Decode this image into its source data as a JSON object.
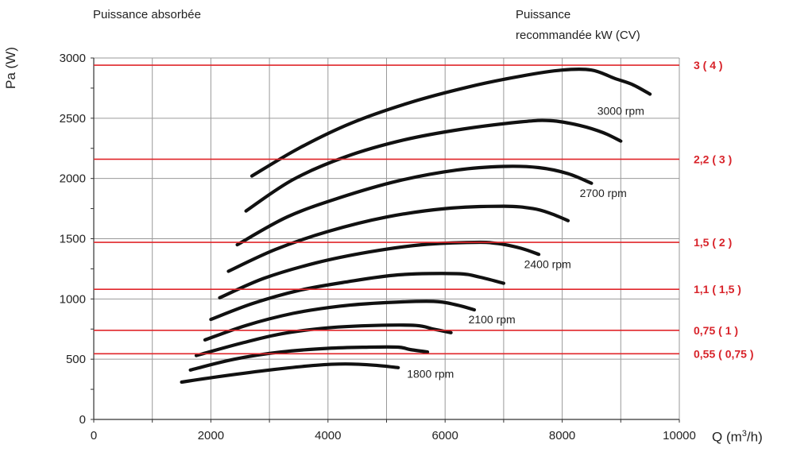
{
  "header": {
    "left_title": "Puissance absorbée",
    "right_title_line1": "Puissance",
    "right_title_line2": "recommandée kW (CV)"
  },
  "axes": {
    "ylabel": "Pa (W)",
    "xlabel_prefix": "Q (m",
    "xlabel_sup": "3",
    "xlabel_suffix": "/h)"
  },
  "chart_data": {
    "type": "line",
    "xlim": [
      0,
      10000
    ],
    "ylim": [
      0,
      3000
    ],
    "x_ticks": [
      0,
      2000,
      4000,
      6000,
      8000,
      10000
    ],
    "y_ticks": [
      0,
      500,
      1000,
      1500,
      2000,
      2500,
      3000
    ],
    "grid": true,
    "series": [
      {
        "points": [
          [
            1500,
            310
          ],
          [
            2200,
            360
          ],
          [
            3000,
            410
          ],
          [
            3800,
            450
          ],
          [
            4300,
            460
          ],
          [
            4800,
            450
          ],
          [
            5200,
            430
          ]
        ]
      },
      {
        "points": [
          [
            1650,
            410
          ],
          [
            2400,
            500
          ],
          [
            3200,
            560
          ],
          [
            4000,
            590
          ],
          [
            4700,
            600
          ],
          [
            5200,
            600
          ],
          [
            5400,
            580
          ],
          [
            5700,
            560
          ]
        ]
      },
      {
        "points": [
          [
            1750,
            530
          ],
          [
            2500,
            630
          ],
          [
            3200,
            710
          ],
          [
            4000,
            760
          ],
          [
            4800,
            780
          ],
          [
            5500,
            780
          ],
          [
            5800,
            750
          ],
          [
            6100,
            720
          ]
        ]
      },
      {
        "points": [
          [
            1900,
            660
          ],
          [
            2600,
            780
          ],
          [
            3400,
            880
          ],
          [
            4200,
            940
          ],
          [
            5000,
            970
          ],
          [
            5800,
            980
          ],
          [
            6200,
            950
          ],
          [
            6500,
            910
          ]
        ]
      },
      {
        "points": [
          [
            2000,
            830
          ],
          [
            2700,
            960
          ],
          [
            3500,
            1070
          ],
          [
            4300,
            1140
          ],
          [
            5200,
            1200
          ],
          [
            6200,
            1210
          ],
          [
            6600,
            1180
          ],
          [
            7000,
            1130
          ]
        ]
      },
      {
        "points": [
          [
            2150,
            1010
          ],
          [
            2900,
            1170
          ],
          [
            3800,
            1300
          ],
          [
            4700,
            1390
          ],
          [
            5600,
            1450
          ],
          [
            6500,
            1470
          ],
          [
            6900,
            1460
          ],
          [
            7300,
            1420
          ],
          [
            7600,
            1370
          ]
        ]
      },
      {
        "points": [
          [
            2300,
            1230
          ],
          [
            3100,
            1410
          ],
          [
            4000,
            1560
          ],
          [
            5000,
            1680
          ],
          [
            6000,
            1750
          ],
          [
            7000,
            1770
          ],
          [
            7500,
            1750
          ],
          [
            7800,
            1710
          ],
          [
            8100,
            1650
          ]
        ]
      },
      {
        "points": [
          [
            2450,
            1450
          ],
          [
            3300,
            1680
          ],
          [
            4200,
            1840
          ],
          [
            5200,
            1980
          ],
          [
            6200,
            2070
          ],
          [
            7000,
            2100
          ],
          [
            7600,
            2090
          ],
          [
            8100,
            2040
          ],
          [
            8500,
            1960
          ]
        ]
      },
      {
        "points": [
          [
            2600,
            1730
          ],
          [
            3400,
            1990
          ],
          [
            4300,
            2180
          ],
          [
            5300,
            2320
          ],
          [
            6300,
            2410
          ],
          [
            7300,
            2470
          ],
          [
            7800,
            2480
          ],
          [
            8300,
            2440
          ],
          [
            8700,
            2380
          ],
          [
            9000,
            2310
          ]
        ]
      },
      {
        "points": [
          [
            2700,
            2020
          ],
          [
            3500,
            2250
          ],
          [
            4400,
            2460
          ],
          [
            5400,
            2630
          ],
          [
            6400,
            2760
          ],
          [
            7300,
            2850
          ],
          [
            8000,
            2900
          ],
          [
            8500,
            2900
          ],
          [
            8900,
            2830
          ],
          [
            9200,
            2780
          ],
          [
            9500,
            2700
          ]
        ]
      }
    ],
    "rpm_labels": [
      {
        "text": "1800 rpm",
        "x": 5750,
        "y": 380
      },
      {
        "text": "2100 rpm",
        "x": 6800,
        "y": 830
      },
      {
        "text": "2400 rpm",
        "x": 7750,
        "y": 1290
      },
      {
        "text": "2700 rpm",
        "x": 8700,
        "y": 1880
      },
      {
        "text": "3000 rpm",
        "x": 9000,
        "y": 2560
      }
    ],
    "power_lines": [
      {
        "y": 2940,
        "label": "3 ( 4 )"
      },
      {
        "y": 2160,
        "label": "2,2 ( 3 )"
      },
      {
        "y": 1470,
        "label": "1,5 ( 2 )"
      },
      {
        "y": 1080,
        "label": "1,1 ( 1,5 )"
      },
      {
        "y": 740,
        "label": "0,75 ( 1 )"
      },
      {
        "y": 545,
        "label": "0,55 ( 0,75 )"
      }
    ],
    "colors": {
      "curve": "#111111",
      "grid": "#9a9a9a",
      "power_line": "#e0262a",
      "power_label": "#d8232a"
    }
  }
}
